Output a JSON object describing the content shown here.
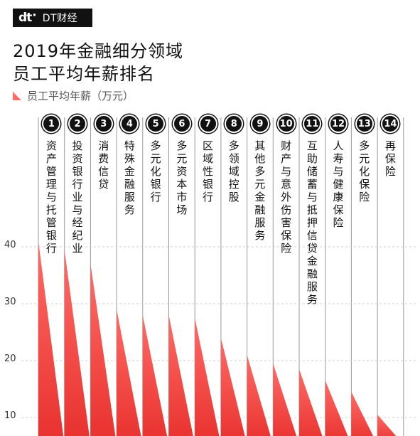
{
  "brand": {
    "mark": "dt",
    "name": "DT财经"
  },
  "title_lines": [
    "2019年金融细分领域",
    "员工平均年薪排名"
  ],
  "legend": "员工平均年薪（万元）",
  "colors": {
    "bar_top": "#ff6b66",
    "bar_bottom": "#e8302d",
    "grid": "#cfcfcf"
  },
  "chart_data": {
    "type": "bar",
    "title": "2019年金融细分领域员工平均年薪排名",
    "ylabel": "员工平均年薪（万元）",
    "ylim": [
      0,
      45
    ],
    "yticks": [
      10,
      20,
      30,
      40
    ],
    "grid": true,
    "legend_position": "top-left",
    "ranks": [
      "1",
      "2",
      "3",
      "4",
      "5",
      "6",
      "7",
      "8",
      "9",
      "10",
      "11",
      "12",
      "13",
      "14"
    ],
    "categories": [
      "资产管理与托管银行",
      "投资银行业与经纪业",
      "消费信贷",
      "特殊金融服务",
      "多元化银行",
      "多元资本市场",
      "区域性银行",
      "多领域控股",
      "其他多元金融服务",
      "财产与意外伤害保险",
      "互助储蓄与抵押信贷金融服务",
      "人寿与健康保险",
      "多元化保险",
      "再保险"
    ],
    "values": [
      41,
      39.5,
      37,
      29,
      28,
      28,
      27.5,
      24,
      21,
      19.5,
      18.5,
      16.5,
      14.5,
      10.5
    ]
  }
}
